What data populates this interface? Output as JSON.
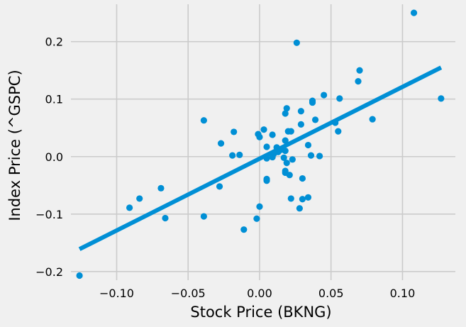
{
  "chart_data": {
    "type": "scatter",
    "xlabel": "Stock Price (BKNG)",
    "ylabel": "Index Price (^GSPC)",
    "xlim": [
      -0.132,
      0.137
    ],
    "ylim": [
      -0.215,
      0.265
    ],
    "grid": true,
    "x_ticks": [
      -0.1,
      -0.05,
      0.0,
      0.05,
      0.1
    ],
    "x_tick_labels": [
      "−0.10",
      "−0.05",
      "0.00",
      "0.05",
      "0.10"
    ],
    "y_ticks": [
      -0.2,
      -0.1,
      0.0,
      0.1,
      0.2
    ],
    "y_tick_labels": [
      "−0.2",
      "−0.1",
      "0.0",
      "0.1",
      "0.2"
    ],
    "colors": {
      "points": "#008fd5",
      "fit_line": "#008fd5",
      "grid": "#cbcbcb",
      "background": "#f0f0f0"
    },
    "fit_line": {
      "x": [
        -0.126,
        0.127
      ],
      "y": [
        -0.161,
        0.155
      ]
    },
    "points": [
      {
        "x": 0.108,
        "y": 0.25
      },
      {
        "x": 0.026,
        "y": 0.198
      },
      {
        "x": 0.07,
        "y": 0.15
      },
      {
        "x": 0.069,
        "y": 0.131
      },
      {
        "x": 0.045,
        "y": 0.107
      },
      {
        "x": 0.056,
        "y": 0.101
      },
      {
        "x": 0.127,
        "y": 0.101
      },
      {
        "x": 0.037,
        "y": 0.097
      },
      {
        "x": 0.037,
        "y": 0.094
      },
      {
        "x": 0.019,
        "y": 0.084
      },
      {
        "x": 0.029,
        "y": 0.079
      },
      {
        "x": 0.018,
        "y": 0.075
      },
      {
        "x": 0.079,
        "y": 0.065
      },
      {
        "x": 0.039,
        "y": 0.064
      },
      {
        "x": -0.039,
        "y": 0.063
      },
      {
        "x": 0.053,
        "y": 0.059
      },
      {
        "x": 0.029,
        "y": 0.056
      },
      {
        "x": 0.003,
        "y": 0.047
      },
      {
        "x": -0.018,
        "y": 0.043
      },
      {
        "x": 0.02,
        "y": 0.044
      },
      {
        "x": 0.022,
        "y": 0.044
      },
      {
        "x": 0.055,
        "y": 0.044
      },
      {
        "x": -0.001,
        "y": 0.039
      },
      {
        "x": 0.009,
        "y": 0.038
      },
      {
        "x": 0.0,
        "y": 0.034
      },
      {
        "x": 0.018,
        "y": 0.028
      },
      {
        "x": -0.027,
        "y": 0.023
      },
      {
        "x": 0.034,
        "y": 0.02
      },
      {
        "x": 0.005,
        "y": 0.017
      },
      {
        "x": 0.012,
        "y": 0.016
      },
      {
        "x": 0.018,
        "y": 0.01
      },
      {
        "x": 0.013,
        "y": 0.008
      },
      {
        "x": 0.015,
        "y": 0.012
      },
      {
        "x": 0.01,
        "y": 0.005
      },
      {
        "x": -0.014,
        "y": 0.003
      },
      {
        "x": -0.019,
        "y": 0.002
      },
      {
        "x": 0.036,
        "y": 0.002
      },
      {
        "x": 0.042,
        "y": 0.001
      },
      {
        "x": 0.009,
        "y": -0.001
      },
      {
        "x": 0.017,
        "y": -0.002
      },
      {
        "x": 0.005,
        "y": -0.003
      },
      {
        "x": 0.023,
        "y": -0.005
      },
      {
        "x": 0.019,
        "y": -0.011
      },
      {
        "x": 0.018,
        "y": -0.025
      },
      {
        "x": 0.018,
        "y": -0.028
      },
      {
        "x": 0.021,
        "y": -0.032
      },
      {
        "x": 0.03,
        "y": -0.038
      },
      {
        "x": 0.005,
        "y": -0.039
      },
      {
        "x": 0.005,
        "y": -0.042
      },
      {
        "x": -0.028,
        "y": -0.052
      },
      {
        "x": -0.069,
        "y": -0.055
      },
      {
        "x": 0.034,
        "y": -0.071
      },
      {
        "x": 0.022,
        "y": -0.073
      },
      {
        "x": 0.03,
        "y": -0.074
      },
      {
        "x": -0.084,
        "y": -0.073
      },
      {
        "x": 0.0,
        "y": -0.087
      },
      {
        "x": -0.091,
        "y": -0.089
      },
      {
        "x": 0.028,
        "y": -0.09
      },
      {
        "x": -0.039,
        "y": -0.104
      },
      {
        "x": -0.066,
        "y": -0.107
      },
      {
        "x": -0.002,
        "y": -0.108
      },
      {
        "x": -0.011,
        "y": -0.127
      },
      {
        "x": -0.126,
        "y": -0.207
      }
    ]
  }
}
